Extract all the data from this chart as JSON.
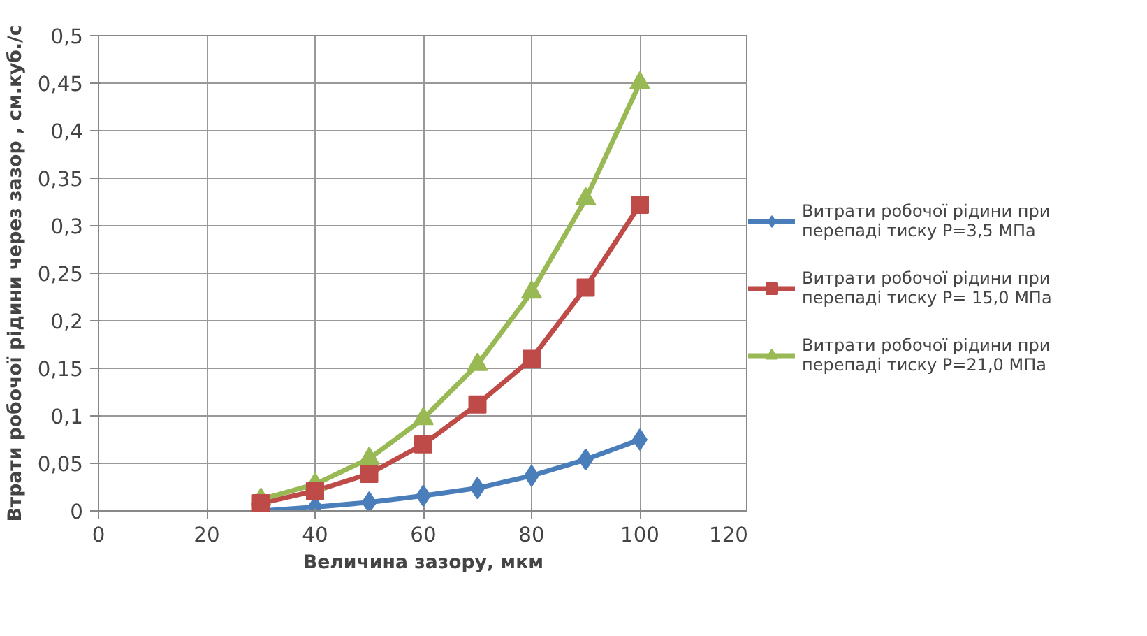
{
  "chart_data": {
    "type": "line",
    "xlabel": "Величина зазору, мкм",
    "ylabel": "Втрати робочої рідини через зазор , см.куб./с",
    "x": [
      30,
      40,
      50,
      60,
      70,
      80,
      90,
      100
    ],
    "series": [
      {
        "name": "Витрати робочої рідини при перепаді тиску P=3,5 МПа",
        "color": "#4a7ebb",
        "marker": "diamond",
        "values": [
          0.0,
          0.004,
          0.009,
          0.016,
          0.024,
          0.037,
          0.054,
          0.075
        ]
      },
      {
        "name": "Витрати робочої рідини при перепаді тиску P= 15,0 МПа",
        "color": "#be4b48",
        "marker": "square",
        "values": [
          0.008,
          0.021,
          0.039,
          0.07,
          0.112,
          0.16,
          0.235,
          0.322
        ]
      },
      {
        "name": "Витрати робочої рідини при перепаді тиску P=21,0 МПа",
        "color": "#98b954",
        "marker": "triangle",
        "values": [
          0.012,
          0.028,
          0.055,
          0.097,
          0.154,
          0.23,
          0.328,
          0.45
        ]
      }
    ],
    "xlim": [
      0,
      120
    ],
    "xticks": [
      0,
      20,
      40,
      60,
      80,
      100,
      120
    ],
    "ylim": [
      0,
      0.5
    ],
    "yticks": [
      0,
      {
        "value": 0.05,
        "label": "0,05"
      },
      {
        "value": 0.1,
        "label": "0,1"
      },
      {
        "value": 0.15,
        "label": "0,15"
      },
      {
        "value": 0.2,
        "label": "0,2"
      },
      {
        "value": 0.25,
        "label": "0,25"
      },
      {
        "value": 0.3,
        "label": "0,3"
      },
      {
        "value": 0.35,
        "label": "0,35"
      },
      {
        "value": 0.4,
        "label": "0,4"
      },
      {
        "value": 0.45,
        "label": "0,45"
      },
      {
        "value": 0.5,
        "label": "0,5"
      }
    ],
    "grid": true,
    "legend": "right",
    "line_style": "solid"
  }
}
